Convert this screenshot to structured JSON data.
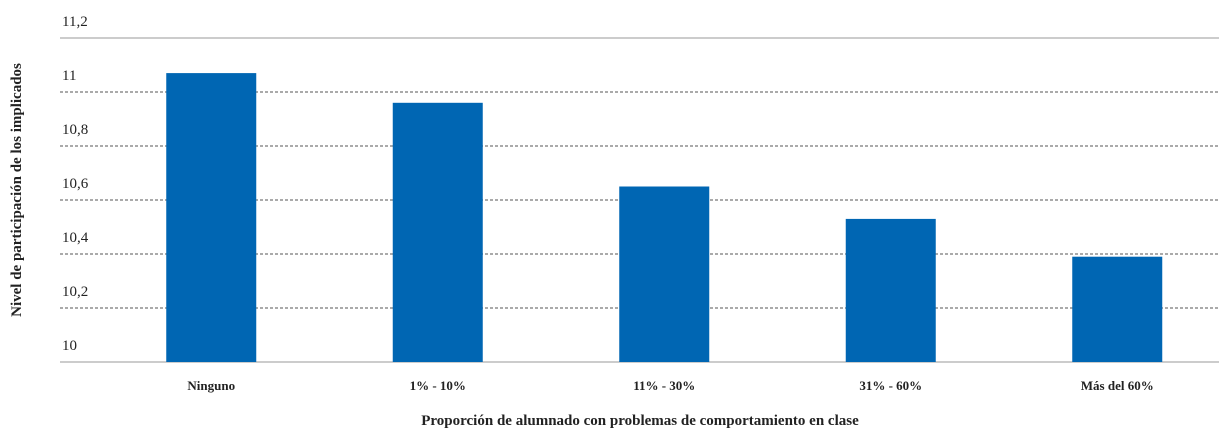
{
  "chart_data": {
    "type": "bar",
    "x_label": "Proporción de alumnado con problemas de comportamiento en clase",
    "y_label": "Nivel de participación de los implicados",
    "categories": [
      "Ninguno",
      "1% - 10%",
      "11% - 30%",
      "31% - 60%",
      "Más del 60%"
    ],
    "values": [
      11.07,
      10.96,
      10.65,
      10.53,
      10.39
    ],
    "color": "#0066b3",
    "ylim": [
      10,
      11.2
    ],
    "yticks": [
      10,
      {
        "value": 10.2,
        "label": "10,2"
      },
      {
        "value": 10.4,
        "label": "10,4"
      },
      {
        "value": 10.6,
        "label": "10,6"
      },
      {
        "value": 10.8,
        "label": "10,8"
      },
      11,
      {
        "value": 11.2,
        "label": "11,2"
      }
    ],
    "grid": true
  }
}
